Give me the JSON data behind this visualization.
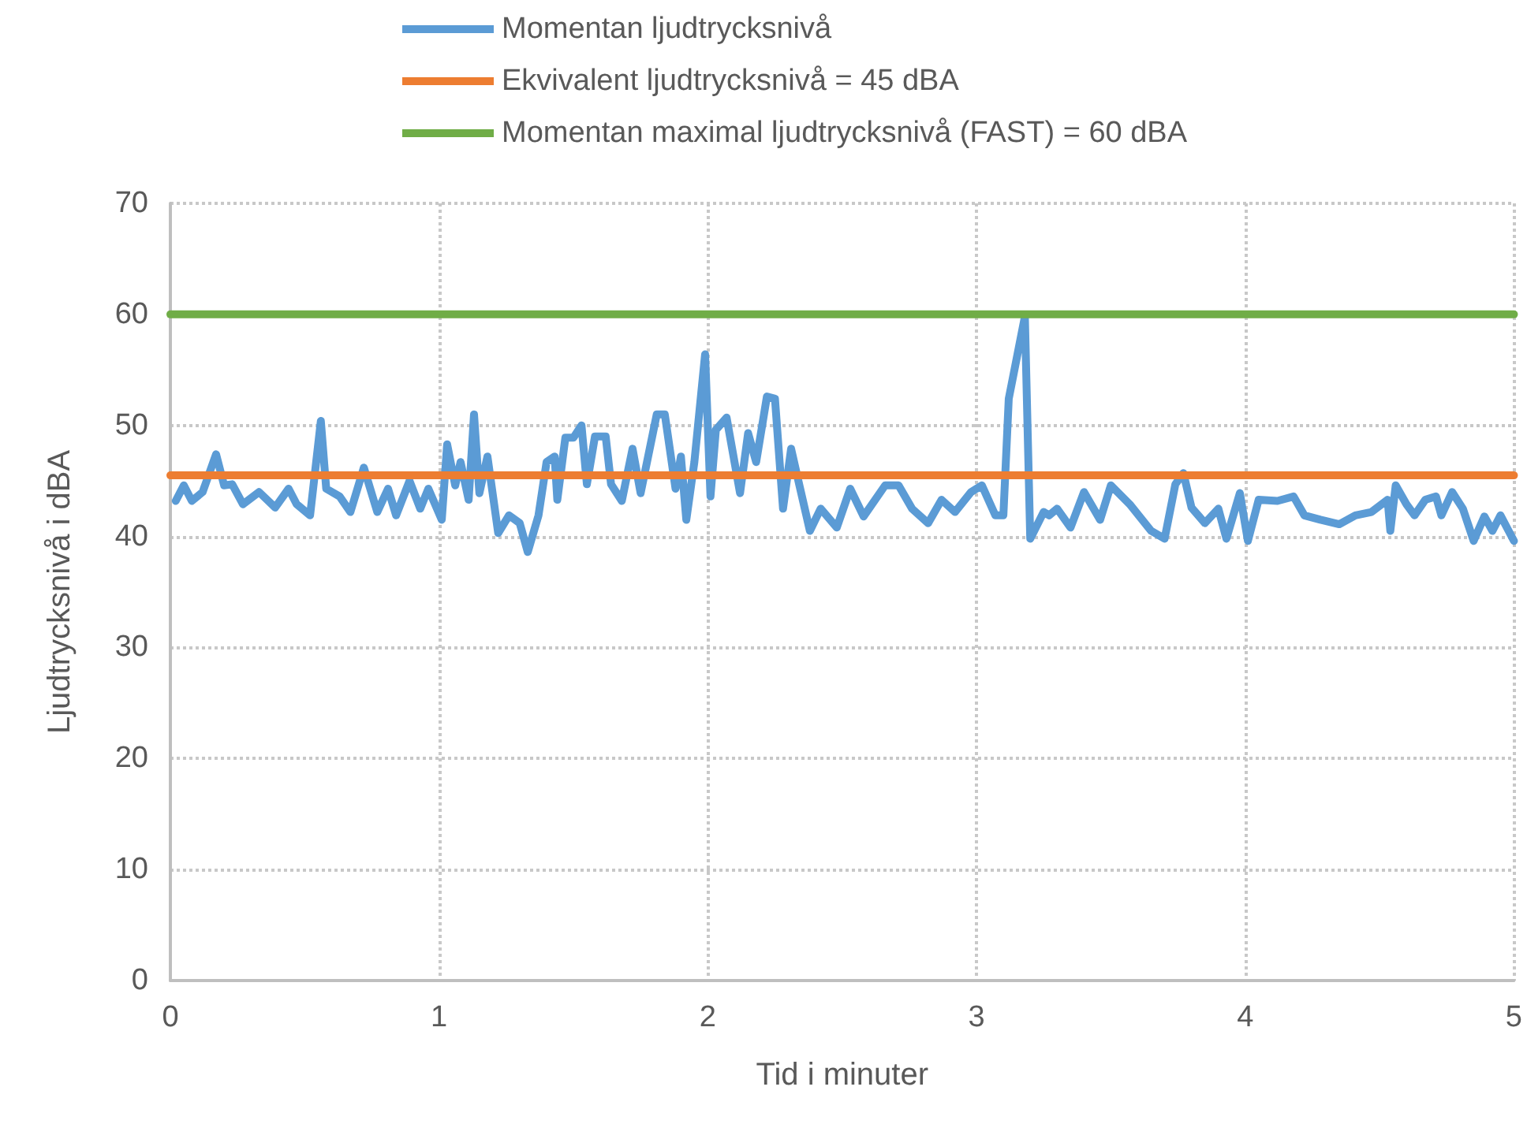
{
  "chart_data": {
    "type": "line",
    "xlabel": "Tid i minuter",
    "ylabel": "Ljudtrycksnivå i dBA",
    "xlim": [
      0,
      5
    ],
    "xticks": [
      0,
      1,
      2,
      3,
      4,
      5
    ],
    "ylim": [
      0,
      70
    ],
    "yticks": [
      0,
      10,
      20,
      30,
      40,
      50,
      60,
      70
    ],
    "grid": true,
    "legend": "top",
    "marker": "none",
    "line_style": "solid",
    "series": [
      {
        "name": "Momentan ljudtrycksnivå",
        "color": "#5b9bd5",
        "x": [
          0.02,
          0.05,
          0.08,
          0.12,
          0.17,
          0.2,
          0.23,
          0.27,
          0.33,
          0.39,
          0.44,
          0.47,
          0.52,
          0.56,
          0.58,
          0.63,
          0.67,
          0.72,
          0.77,
          0.81,
          0.84,
          0.89,
          0.93,
          0.96,
          1.01,
          1.03,
          1.06,
          1.08,
          1.11,
          1.13,
          1.15,
          1.18,
          1.22,
          1.26,
          1.3,
          1.33,
          1.37,
          1.4,
          1.43,
          1.44,
          1.47,
          1.5,
          1.53,
          1.55,
          1.58,
          1.62,
          1.64,
          1.68,
          1.72,
          1.75,
          1.81,
          1.84,
          1.88,
          1.9,
          1.92,
          1.95,
          1.99,
          2.01,
          2.03,
          2.07,
          2.12,
          2.15,
          2.18,
          2.22,
          2.25,
          2.28,
          2.31,
          2.34,
          2.38,
          2.42,
          2.48,
          2.53,
          2.58,
          2.66,
          2.71,
          2.76,
          2.82,
          2.87,
          2.92,
          2.98,
          3.02,
          3.07,
          3.1,
          3.12,
          3.18,
          3.2,
          3.25,
          3.27,
          3.3,
          3.35,
          3.4,
          3.46,
          3.5,
          3.57,
          3.65,
          3.7,
          3.74,
          3.77,
          3.8,
          3.85,
          3.9,
          3.93,
          3.98,
          4.01,
          4.05,
          4.12,
          4.18,
          4.22,
          4.28,
          4.35,
          4.41,
          4.47,
          4.53,
          4.54,
          4.56,
          4.6,
          4.63,
          4.67,
          4.71,
          4.73,
          4.77,
          4.81,
          4.85,
          4.89,
          4.92,
          4.95,
          5.0
        ],
        "values": [
          43.2,
          44.6,
          43.2,
          44.0,
          47.4,
          44.6,
          44.7,
          42.9,
          44.0,
          42.6,
          44.3,
          42.9,
          41.9,
          50.4,
          44.3,
          43.6,
          42.2,
          46.2,
          42.2,
          44.3,
          41.9,
          45.0,
          42.5,
          44.3,
          41.5,
          48.3,
          44.6,
          46.7,
          43.3,
          51.0,
          43.9,
          47.2,
          40.3,
          41.9,
          41.2,
          38.6,
          41.9,
          46.7,
          47.2,
          43.3,
          48.9,
          48.9,
          50.0,
          44.7,
          49.0,
          49.0,
          44.7,
          43.2,
          47.9,
          43.9,
          51.0,
          51.0,
          44.3,
          47.2,
          41.5,
          46.7,
          56.4,
          43.6,
          49.6,
          50.7,
          43.9,
          49.3,
          46.7,
          52.6,
          52.4,
          42.5,
          47.9,
          44.7,
          40.5,
          42.5,
          40.8,
          44.3,
          41.8,
          44.6,
          44.6,
          42.5,
          41.2,
          43.3,
          42.2,
          44.0,
          44.6,
          41.9,
          41.9,
          52.4,
          59.8,
          39.8,
          42.2,
          41.9,
          42.5,
          40.8,
          44.0,
          41.5,
          44.6,
          42.9,
          40.5,
          39.8,
          44.7,
          45.7,
          42.6,
          41.2,
          42.5,
          39.8,
          43.9,
          39.6,
          43.3,
          43.2,
          43.6,
          41.9,
          41.5,
          41.1,
          41.9,
          42.2,
          43.3,
          40.5,
          44.6,
          42.9,
          41.9,
          43.3,
          43.6,
          41.9,
          44.0,
          42.5,
          39.6,
          41.8,
          40.5,
          41.9,
          39.6
        ]
      },
      {
        "name": "Ekvivalent ljudtrycksnivå = 45 dBA",
        "color": "#ed7d31",
        "x": [
          0,
          5
        ],
        "values": [
          45.5,
          45.5
        ]
      },
      {
        "name": "Momentan maximal ljudtrycksnivå (FAST) = 60 dBA",
        "color": "#70ad47",
        "x": [
          0,
          5
        ],
        "values": [
          60,
          60
        ]
      }
    ]
  }
}
